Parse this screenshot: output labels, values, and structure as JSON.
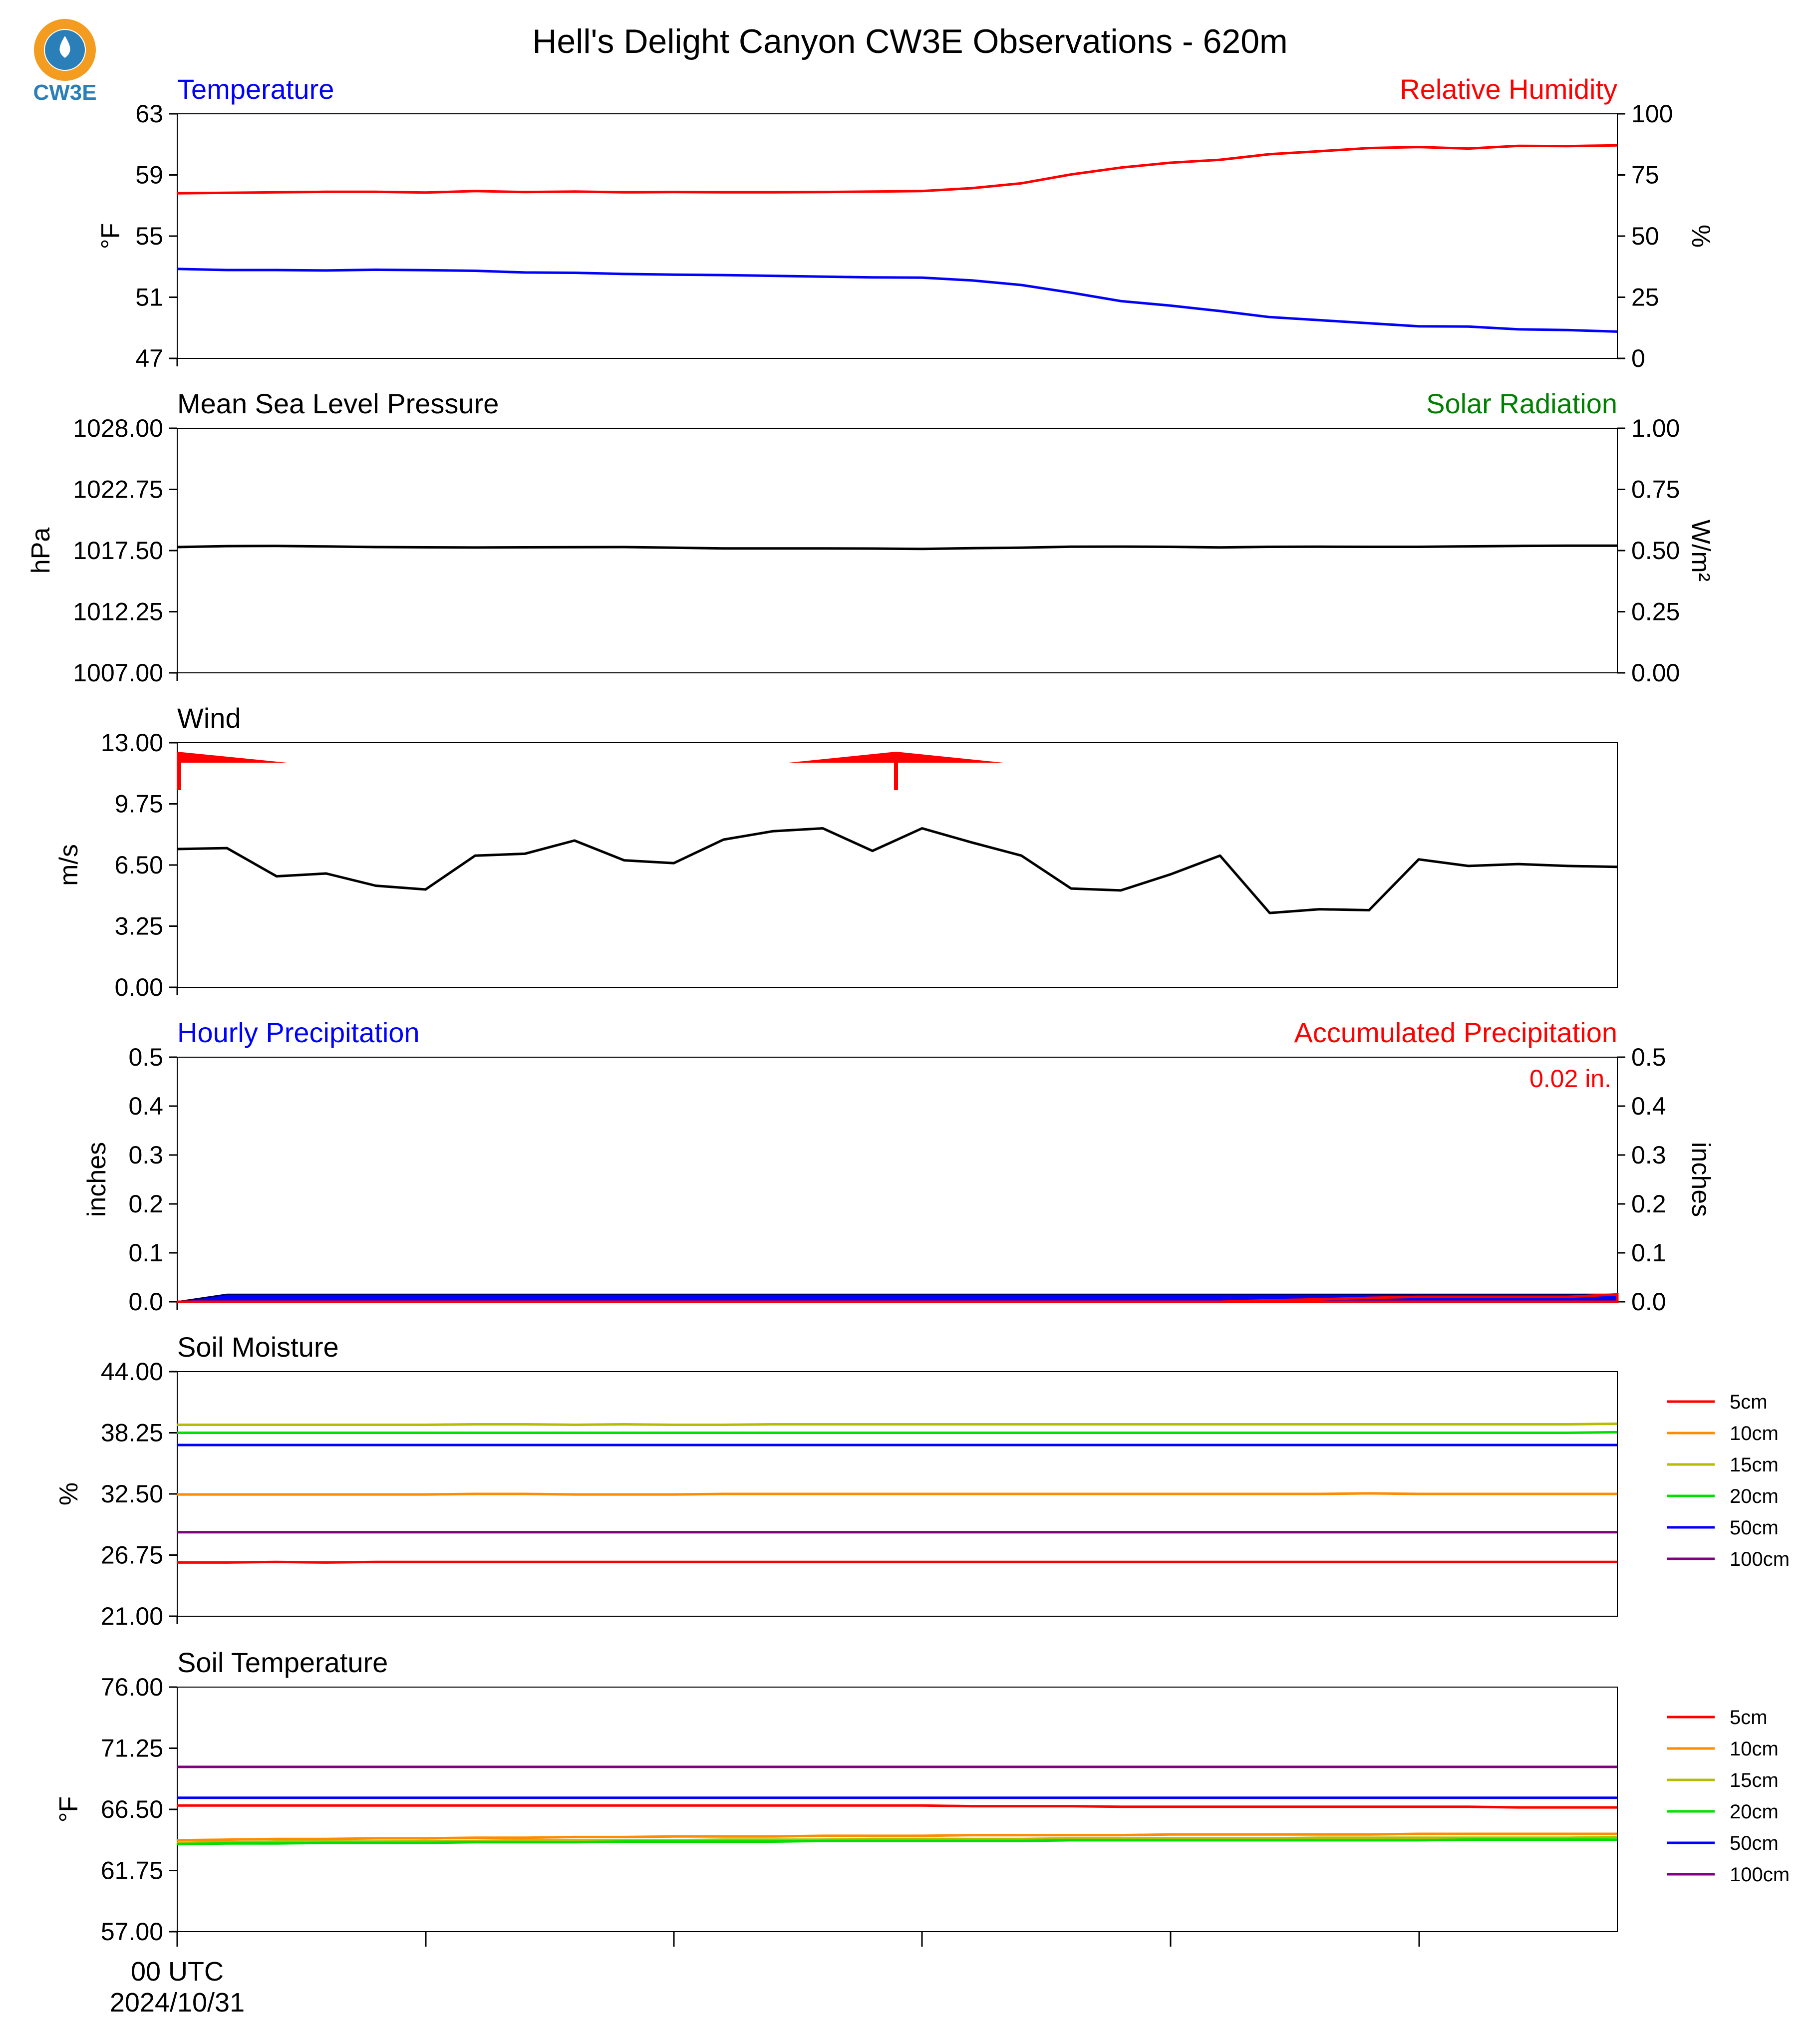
{
  "title": "Hell's Delight Canyon CW3E Observations - 620m",
  "logo": {
    "text": "CW3E",
    "icon": "cw3e-logo-icon",
    "ring_color": "#f39c1f",
    "drop_color": "#2a7fb8"
  },
  "x_axis": {
    "start_label": "00 UTC",
    "start_date": "2024/10/31",
    "num_points": 30
  },
  "chart_data": [
    {
      "type": "line",
      "title_left": "Temperature",
      "title_right": "Relative Humidity",
      "title_left_color": "#0000ff",
      "title_right_color": "#ff0000",
      "ylabel": "°F",
      "ylabel_right": "%",
      "ylim": [
        47,
        63
      ],
      "ylim_right": [
        0,
        100
      ],
      "yticks": [
        "63",
        "59",
        "55",
        "51",
        "47"
      ],
      "yticks_right": [
        "100",
        "75",
        "50",
        "25",
        "0"
      ],
      "series": [
        {
          "name": "Temperature",
          "axis": "left",
          "color": "#0000ff",
          "values": [
            52.85,
            52.78,
            52.78,
            52.75,
            52.8,
            52.77,
            52.73,
            52.62,
            52.6,
            52.52,
            52.48,
            52.45,
            52.4,
            52.35,
            52.3,
            52.28,
            52.1,
            51.8,
            51.3,
            50.75,
            50.45,
            50.1,
            49.7,
            49.5,
            49.3,
            49.1,
            49.08,
            48.9,
            48.85,
            48.75
          ]
        },
        {
          "name": "Relative Humidity",
          "axis": "right",
          "color": "#ff0000",
          "values": [
            67.5,
            67.7,
            67.9,
            68.1,
            68.1,
            67.8,
            68.4,
            68.0,
            68.2,
            67.9,
            68.0,
            67.9,
            67.9,
            68.0,
            68.2,
            68.4,
            69.6,
            71.6,
            75.2,
            78.0,
            80.0,
            81.2,
            83.5,
            84.7,
            86.0,
            86.4,
            85.8,
            86.9,
            86.8,
            87.1
          ]
        }
      ]
    },
    {
      "type": "line",
      "title_left": "Mean Sea Level Pressure",
      "title_right": "Solar Radiation",
      "title_left_color": "#000000",
      "title_right_color": "#008000",
      "ylabel": "hPa",
      "ylabel_right": "W/m²",
      "ylim": [
        1007,
        1028
      ],
      "ylim_right": [
        0,
        1
      ],
      "yticks": [
        "1028.00",
        "1022.75",
        "1017.50",
        "1012.25",
        "1007.00"
      ],
      "yticks_right": [
        "1.00",
        "0.75",
        "0.50",
        "0.25",
        "0.00"
      ],
      "series": [
        {
          "name": "Mean Sea Level Pressure",
          "axis": "left",
          "color": "#000000",
          "values": [
            1017.8,
            1017.88,
            1017.9,
            1017.85,
            1017.8,
            1017.78,
            1017.76,
            1017.78,
            1017.79,
            1017.8,
            1017.75,
            1017.68,
            1017.68,
            1017.68,
            1017.67,
            1017.64,
            1017.7,
            1017.75,
            1017.83,
            1017.84,
            1017.82,
            1017.77,
            1017.82,
            1017.83,
            1017.82,
            1017.82,
            1017.86,
            1017.9,
            1017.92,
            1017.92
          ]
        }
      ]
    },
    {
      "type": "line",
      "title_left": "Wind",
      "title_left_color": "#000000",
      "ylabel": "m/s",
      "ylim": [
        0,
        13
      ],
      "yticks": [
        "13.00",
        "9.75",
        "6.50",
        "3.25",
        "0.00"
      ],
      "barb_color": "#ff0000",
      "series": [
        {
          "name": "Wind",
          "axis": "left",
          "color": "#000000",
          "values": [
            7.35,
            7.4,
            5.9,
            6.05,
            5.4,
            5.2,
            7.0,
            7.1,
            7.8,
            6.75,
            6.6,
            7.85,
            8.3,
            8.45,
            7.25,
            8.45,
            7.7,
            7.0,
            5.25,
            5.15,
            6.0,
            7.0,
            3.95,
            4.15,
            4.1,
            6.8,
            6.45,
            6.55,
            6.45,
            6.4
          ]
        }
      ]
    },
    {
      "type": "area",
      "title_left": "Hourly Precipitation",
      "title_right": "Accumulated Precipitation",
      "title_left_color": "#0000ff",
      "title_right_color": "#ff0000",
      "ylabel": "inches",
      "ylabel_right": "inches",
      "ylim": [
        0,
        0.5
      ],
      "ylim_right": [
        0,
        0.5
      ],
      "yticks": [
        "0.5",
        "0.4",
        "0.3",
        "0.2",
        "0.1",
        "0.0"
      ],
      "yticks_right": [
        "0.5",
        "0.4",
        "0.3",
        "0.2",
        "0.1",
        "0.0"
      ],
      "annotation": "0.02 in.",
      "series": [
        {
          "name": "Hourly Precipitation",
          "axis": "left",
          "color": "#0000ff",
          "values": [
            0.0,
            0.015,
            0.015,
            0.015,
            0.015,
            0.015,
            0.015,
            0.015,
            0.015,
            0.015,
            0.015,
            0.015,
            0.015,
            0.015,
            0.015,
            0.015,
            0.015,
            0.015,
            0.015,
            0.015,
            0.015,
            0.015,
            0.015,
            0.015,
            0.015,
            0.015,
            0.015,
            0.015,
            0.015,
            0.015
          ]
        },
        {
          "name": "Accumulated Precipitation",
          "axis": "right",
          "color": "#ff0000",
          "values": [
            0.0,
            0.0,
            0.0,
            0.0,
            0.0,
            0.0,
            0.0,
            0.0,
            0.0,
            0.0,
            0.0,
            0.0,
            0.0,
            0.0,
            0.0,
            0.0,
            0.0,
            0.0,
            0.0,
            0.0,
            0.0,
            0.0,
            0.003,
            0.005,
            0.008,
            0.01,
            0.01,
            0.01,
            0.01,
            0.015
          ]
        }
      ]
    },
    {
      "type": "line",
      "title_left": "Soil Moisture",
      "title_left_color": "#000000",
      "ylabel": "%",
      "ylim": [
        21,
        44
      ],
      "yticks": [
        "44.00",
        "38.25",
        "32.50",
        "26.75",
        "21.00"
      ],
      "legend": "right",
      "series": [
        {
          "name": "5cm",
          "color": "#ff0000",
          "values": [
            26.05,
            26.05,
            26.1,
            26.05,
            26.1,
            26.1,
            26.1,
            26.1,
            26.1,
            26.1,
            26.1,
            26.1,
            26.1,
            26.1,
            26.1,
            26.1,
            26.1,
            26.1,
            26.1,
            26.1,
            26.1,
            26.1,
            26.1,
            26.1,
            26.1,
            26.1,
            26.1,
            26.1,
            26.1,
            26.1
          ]
        },
        {
          "name": "10cm",
          "color": "#ff8c00",
          "values": [
            32.45,
            32.45,
            32.45,
            32.45,
            32.45,
            32.45,
            32.5,
            32.5,
            32.45,
            32.45,
            32.45,
            32.5,
            32.5,
            32.5,
            32.5,
            32.5,
            32.5,
            32.5,
            32.5,
            32.5,
            32.5,
            32.5,
            32.5,
            32.5,
            32.55,
            32.5,
            32.5,
            32.5,
            32.5,
            32.5
          ]
        },
        {
          "name": "15cm",
          "color": "#b5bd00",
          "values": [
            39.0,
            39.0,
            39.0,
            39.0,
            39.0,
            39.0,
            39.05,
            39.05,
            39.0,
            39.05,
            39.0,
            39.0,
            39.05,
            39.05,
            39.05,
            39.05,
            39.05,
            39.05,
            39.05,
            39.05,
            39.05,
            39.05,
            39.05,
            39.05,
            39.05,
            39.05,
            39.05,
            39.05,
            39.05,
            39.1
          ]
        },
        {
          "name": "20cm",
          "color": "#00e000",
          "values": [
            38.25,
            38.25,
            38.25,
            38.25,
            38.25,
            38.25,
            38.25,
            38.25,
            38.25,
            38.25,
            38.25,
            38.25,
            38.25,
            38.25,
            38.25,
            38.25,
            38.25,
            38.25,
            38.25,
            38.25,
            38.25,
            38.25,
            38.25,
            38.25,
            38.25,
            38.25,
            38.25,
            38.25,
            38.25,
            38.3
          ]
        },
        {
          "name": "50cm",
          "color": "#0000ff",
          "values": [
            37.1,
            37.1,
            37.1,
            37.1,
            37.1,
            37.1,
            37.1,
            37.1,
            37.1,
            37.1,
            37.1,
            37.1,
            37.1,
            37.1,
            37.1,
            37.1,
            37.1,
            37.1,
            37.1,
            37.1,
            37.1,
            37.1,
            37.1,
            37.1,
            37.1,
            37.1,
            37.1,
            37.1,
            37.1,
            37.1
          ]
        },
        {
          "name": "100cm",
          "color": "#800080",
          "values": [
            28.9,
            28.9,
            28.9,
            28.9,
            28.9,
            28.9,
            28.9,
            28.9,
            28.9,
            28.9,
            28.9,
            28.9,
            28.9,
            28.9,
            28.9,
            28.9,
            28.9,
            28.9,
            28.9,
            28.9,
            28.9,
            28.9,
            28.9,
            28.9,
            28.9,
            28.9,
            28.9,
            28.9,
            28.9,
            28.9
          ]
        }
      ]
    },
    {
      "type": "line",
      "title_left": "Soil Temperature",
      "title_left_color": "#000000",
      "ylabel": "°F",
      "ylim": [
        57,
        76
      ],
      "yticks": [
        "76.00",
        "71.25",
        "66.50",
        "61.75",
        "57.00"
      ],
      "legend": "right",
      "series": [
        {
          "name": "5cm",
          "color": "#ff0000",
          "values": [
            66.8,
            66.8,
            66.8,
            66.8,
            66.8,
            66.8,
            66.8,
            66.8,
            66.8,
            66.8,
            66.8,
            66.8,
            66.8,
            66.8,
            66.8,
            66.8,
            66.75,
            66.75,
            66.75,
            66.7,
            66.7,
            66.7,
            66.7,
            66.7,
            66.7,
            66.7,
            66.7,
            66.65,
            66.65,
            66.65
          ]
        },
        {
          "name": "10cm",
          "color": "#ff8c00",
          "values": [
            64.1,
            64.15,
            64.2,
            64.2,
            64.25,
            64.25,
            64.3,
            64.3,
            64.35,
            64.35,
            64.4,
            64.4,
            64.4,
            64.45,
            64.45,
            64.45,
            64.5,
            64.5,
            64.5,
            64.5,
            64.55,
            64.55,
            64.55,
            64.55,
            64.55,
            64.6,
            64.6,
            64.6,
            64.6,
            64.6
          ]
        },
        {
          "name": "15cm",
          "color": "#b5bd00",
          "values": [
            63.9,
            63.95,
            64.0,
            64.0,
            64.0,
            64.05,
            64.05,
            64.1,
            64.1,
            64.1,
            64.1,
            64.15,
            64.15,
            64.15,
            64.2,
            64.2,
            64.2,
            64.2,
            64.25,
            64.25,
            64.25,
            64.25,
            64.25,
            64.3,
            64.3,
            64.3,
            64.3,
            64.3,
            64.3,
            64.35
          ]
        },
        {
          "name": "20cm",
          "color": "#00e000",
          "values": [
            63.8,
            63.85,
            63.85,
            63.9,
            63.9,
            63.9,
            63.95,
            63.95,
            63.95,
            64.0,
            64.0,
            64.0,
            64.0,
            64.05,
            64.05,
            64.05,
            64.05,
            64.05,
            64.1,
            64.1,
            64.1,
            64.1,
            64.1,
            64.1,
            64.1,
            64.1,
            64.15,
            64.15,
            64.15,
            64.15
          ]
        },
        {
          "name": "50cm",
          "color": "#0000ff",
          "values": [
            67.4,
            67.4,
            67.4,
            67.4,
            67.4,
            67.4,
            67.4,
            67.4,
            67.4,
            67.4,
            67.4,
            67.4,
            67.4,
            67.4,
            67.4,
            67.4,
            67.4,
            67.4,
            67.4,
            67.4,
            67.4,
            67.4,
            67.4,
            67.4,
            67.4,
            67.4,
            67.4,
            67.4,
            67.4,
            67.4
          ]
        },
        {
          "name": "100cm",
          "color": "#800080",
          "values": [
            69.8,
            69.8,
            69.8,
            69.8,
            69.8,
            69.8,
            69.8,
            69.8,
            69.8,
            69.8,
            69.8,
            69.8,
            69.8,
            69.8,
            69.8,
            69.8,
            69.8,
            69.8,
            69.8,
            69.8,
            69.8,
            69.8,
            69.8,
            69.8,
            69.8,
            69.8,
            69.8,
            69.8,
            69.8,
            69.8
          ]
        }
      ]
    }
  ]
}
